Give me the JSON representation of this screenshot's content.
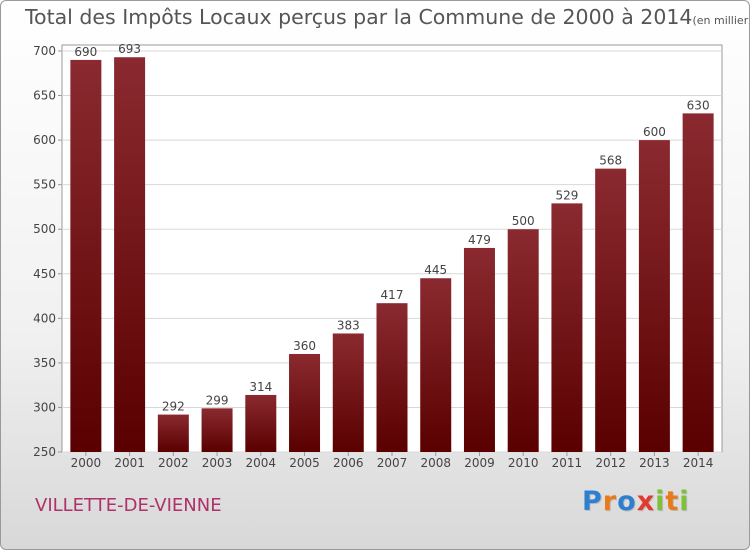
{
  "header": {
    "title": "Total des Impôts Locaux perçus par la Commune de 2000 à 2014",
    "subtitle": "(en milliers d'€)"
  },
  "commune": "VILLETTE-DE-VIENNE",
  "brand": {
    "letters": [
      "P",
      "r",
      "o",
      "x",
      "i",
      "t",
      "i"
    ],
    "colors": [
      "#2f7fd0",
      "#e87a1c",
      "#2f7fd0",
      "#e23a2f",
      "#7fbf3a",
      "#e87a1c",
      "#7fbf3a"
    ]
  },
  "chart_data": {
    "type": "bar",
    "categories": [
      "2000",
      "2001",
      "2002",
      "2003",
      "2004",
      "2005",
      "2006",
      "2007",
      "2008",
      "2009",
      "2010",
      "2011",
      "2012",
      "2013",
      "2014"
    ],
    "values": [
      690,
      693,
      292,
      299,
      314,
      360,
      383,
      417,
      445,
      479,
      500,
      529,
      568,
      600,
      630
    ],
    "title": "Total des Impôts Locaux perçus par la Commune de 2000 à 2014",
    "ylim": [
      250,
      700
    ],
    "yticks": [
      250,
      300,
      350,
      400,
      450,
      500,
      550,
      600,
      650,
      700
    ],
    "grid": true,
    "bar_color_top": "#8a2a30",
    "bar_color_bottom": "#5a0000"
  }
}
